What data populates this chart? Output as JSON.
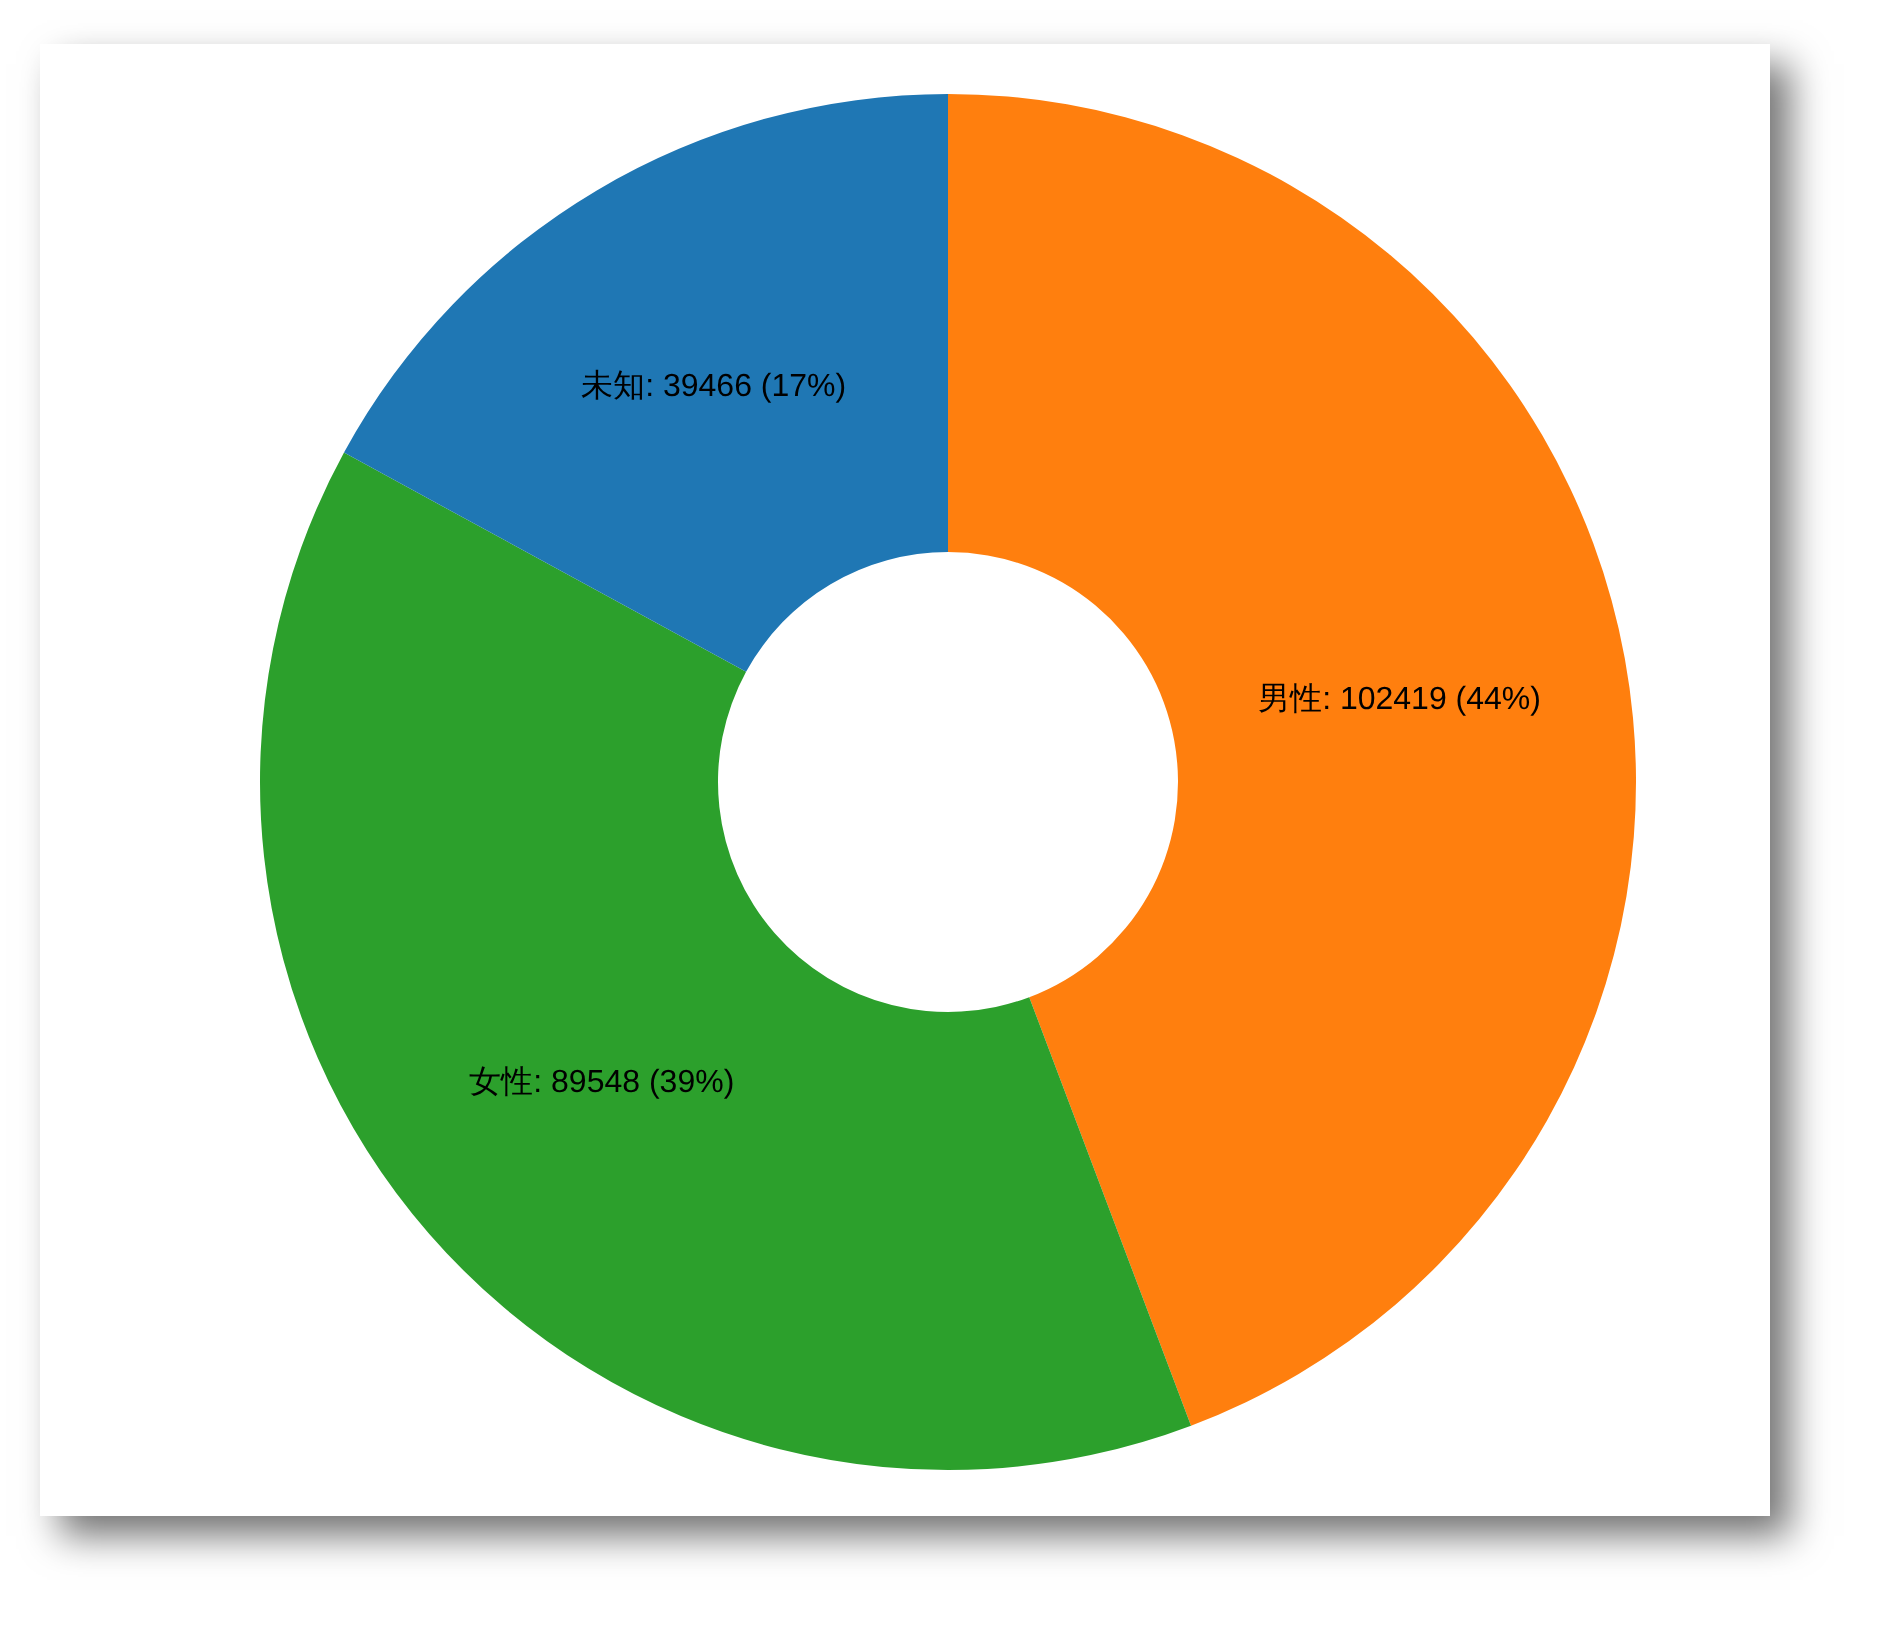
{
  "chart_data": {
    "type": "donut",
    "categories": [
      "男性",
      "女性",
      "未知"
    ],
    "values": [
      102419,
      89548,
      39466
    ],
    "colors": [
      "#ff7f0e",
      "#2ca02c",
      "#1f77b4"
    ],
    "value_labels": [
      "102419 (44%)",
      "89548 (39%)",
      "39466 (17%)"
    ]
  }
}
